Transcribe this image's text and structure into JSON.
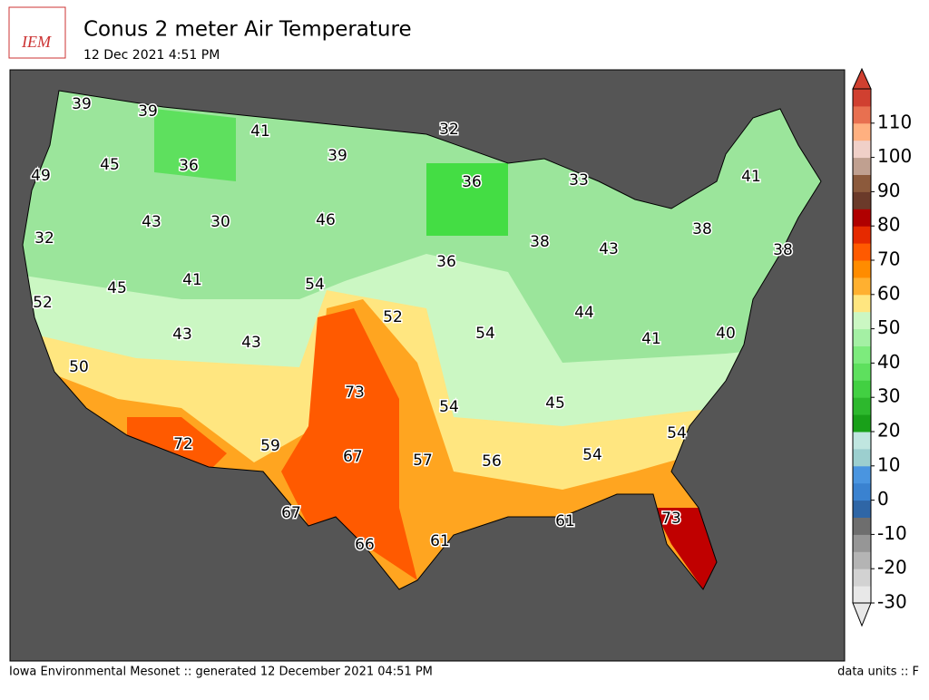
{
  "logo": "IEM",
  "header": {
    "title": "Conus 2 meter Air Temperature",
    "subtitle": "12 Dec 2021 4:51 PM"
  },
  "map": {
    "station_values": [
      39,
      39,
      41,
      32,
      49,
      45,
      36,
      39,
      36,
      33,
      41,
      43,
      30,
      46,
      32,
      38,
      43,
      38,
      38,
      36,
      45,
      41,
      54,
      52,
      52,
      44,
      43,
      43,
      54,
      41,
      40,
      50,
      73,
      54,
      45,
      54,
      72,
      59,
      67,
      57,
      56,
      54,
      67,
      61,
      73,
      66,
      61
    ]
  },
  "colorbar": {
    "range": [
      -30,
      120
    ],
    "ticks": [
      -30,
      -20,
      -10,
      0,
      10,
      20,
      30,
      40,
      50,
      60,
      70,
      80,
      90,
      100,
      110
    ],
    "colors": [
      "#e8e8e8",
      "#d2d2d2",
      "#b4b4b4",
      "#969696",
      "#6e6e6e",
      "#2f66a6",
      "#3a82d0",
      "#4a95e0",
      "#9ccfcf",
      "#c0e6e0",
      "#19a019",
      "#2db82d",
      "#42d042",
      "#5ee05e",
      "#7deb7d",
      "#a4f0a4",
      "#cbf7c3",
      "#ffe680",
      "#ffb030",
      "#ff8c00",
      "#ff5a00",
      "#e62a00",
      "#b00000",
      "#6b3a2a",
      "#8c5a3c",
      "#c0a090",
      "#f0d0c8",
      "#ffb080",
      "#e87050",
      "#d04030"
    ]
  },
  "footer": {
    "left": "Iowa Environmental Mesonet :: generated 12 December 2021 04:51 PM",
    "right": "data units :: F"
  }
}
